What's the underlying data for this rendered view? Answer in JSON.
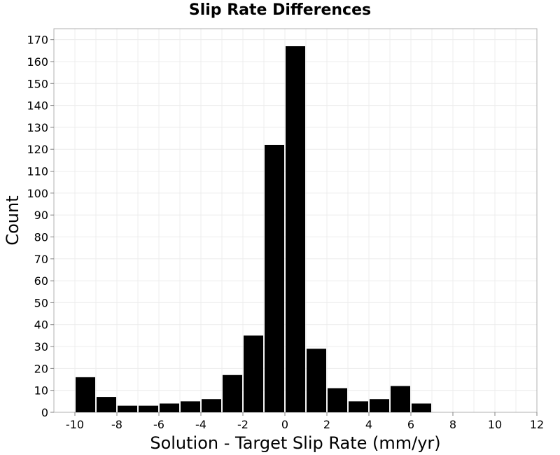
{
  "chart_data": {
    "type": "bar",
    "title": "Slip Rate Differences",
    "xlabel": "Solution - Target Slip Rate (mm/yr)",
    "ylabel": "Count",
    "xlim": [
      -11,
      12
    ],
    "ylim": [
      0,
      175
    ],
    "xticks": [
      -10,
      -8,
      -6,
      -4,
      -2,
      0,
      2,
      4,
      6,
      8,
      10,
      12
    ],
    "yticks": [
      0,
      10,
      20,
      30,
      40,
      50,
      60,
      70,
      80,
      90,
      100,
      110,
      120,
      130,
      140,
      150,
      160,
      170
    ],
    "bin_width": 1,
    "bins": [
      {
        "x": -10,
        "count": 16
      },
      {
        "x": -9,
        "count": 7
      },
      {
        "x": -8,
        "count": 3
      },
      {
        "x": -7,
        "count": 3
      },
      {
        "x": -6,
        "count": 4
      },
      {
        "x": -5,
        "count": 5
      },
      {
        "x": -4,
        "count": 6
      },
      {
        "x": -3,
        "count": 17
      },
      {
        "x": -2,
        "count": 35
      },
      {
        "x": -1,
        "count": 122
      },
      {
        "x": 0,
        "count": 167
      },
      {
        "x": 1,
        "count": 29
      },
      {
        "x": 2,
        "count": 11
      },
      {
        "x": 3,
        "count": 5
      },
      {
        "x": 4,
        "count": 6
      },
      {
        "x": 5,
        "count": 12
      },
      {
        "x": 6,
        "count": 4
      }
    ],
    "bar_color": "#000000",
    "grid": true
  }
}
